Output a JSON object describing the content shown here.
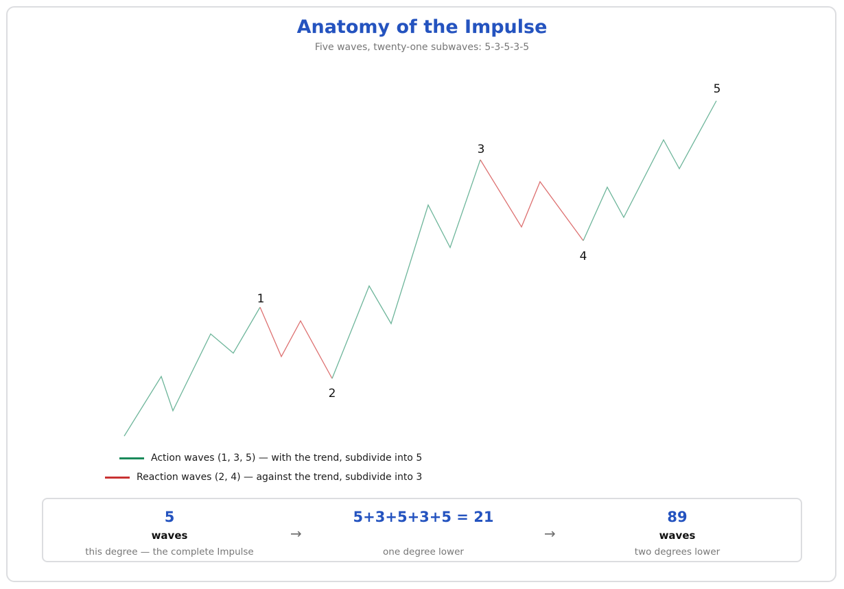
{
  "title": "Anatomy of the Impulse",
  "subtitle": "Five waves, twenty-one subwaves: 5-3-5-3-5",
  "colors": {
    "action": "#1a8a5a",
    "action_line": "#6db59a",
    "reaction": "#c83232",
    "reaction_line": "#dd7070",
    "accent": "#2453bf"
  },
  "waves": [
    {
      "label": "1",
      "type": "action"
    },
    {
      "label": "2",
      "type": "reaction"
    },
    {
      "label": "3",
      "type": "action"
    },
    {
      "label": "4",
      "type": "reaction"
    },
    {
      "label": "5",
      "type": "action"
    }
  ],
  "legend": {
    "action": "Action waves (1, 3, 5) — with the trend, subdivide into 5",
    "reaction": "Reaction waves (2, 4) — against the trend, subdivide into 3"
  },
  "summary": {
    "items": [
      {
        "value": "5",
        "unit": "waves",
        "desc": "this degree — the complete Impulse"
      },
      {
        "value": "5+3+5+3+5 = 21",
        "unit": "",
        "desc": "one degree lower"
      },
      {
        "value": "89",
        "unit": "waves",
        "desc": "two degrees lower"
      }
    ],
    "arrow": "→"
  }
}
